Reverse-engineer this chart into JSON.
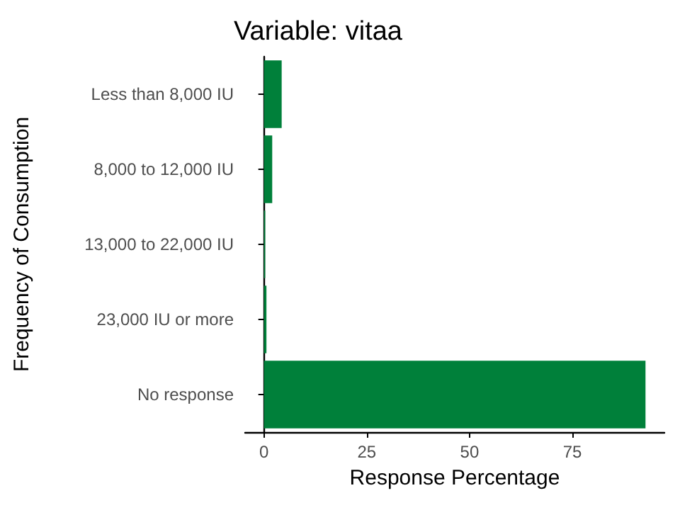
{
  "chart_data": {
    "type": "bar",
    "orientation": "horizontal",
    "title": "Variable: vitaa",
    "xlabel": "Response Percentage",
    "ylabel": "Frequency of Consumption",
    "categories": [
      "Less than 8,000 IU",
      "8,000 to 12,000 IU",
      "13,000 to 22,000 IU",
      "23,000 IU or more",
      "No response"
    ],
    "values": [
      4.3,
      2.0,
      0.3,
      0.6,
      92.8
    ],
    "color": "#00803a",
    "xlim": [
      -4.6,
      97.4
    ],
    "xticks": [
      0,
      25,
      50,
      75
    ],
    "grid": false
  }
}
